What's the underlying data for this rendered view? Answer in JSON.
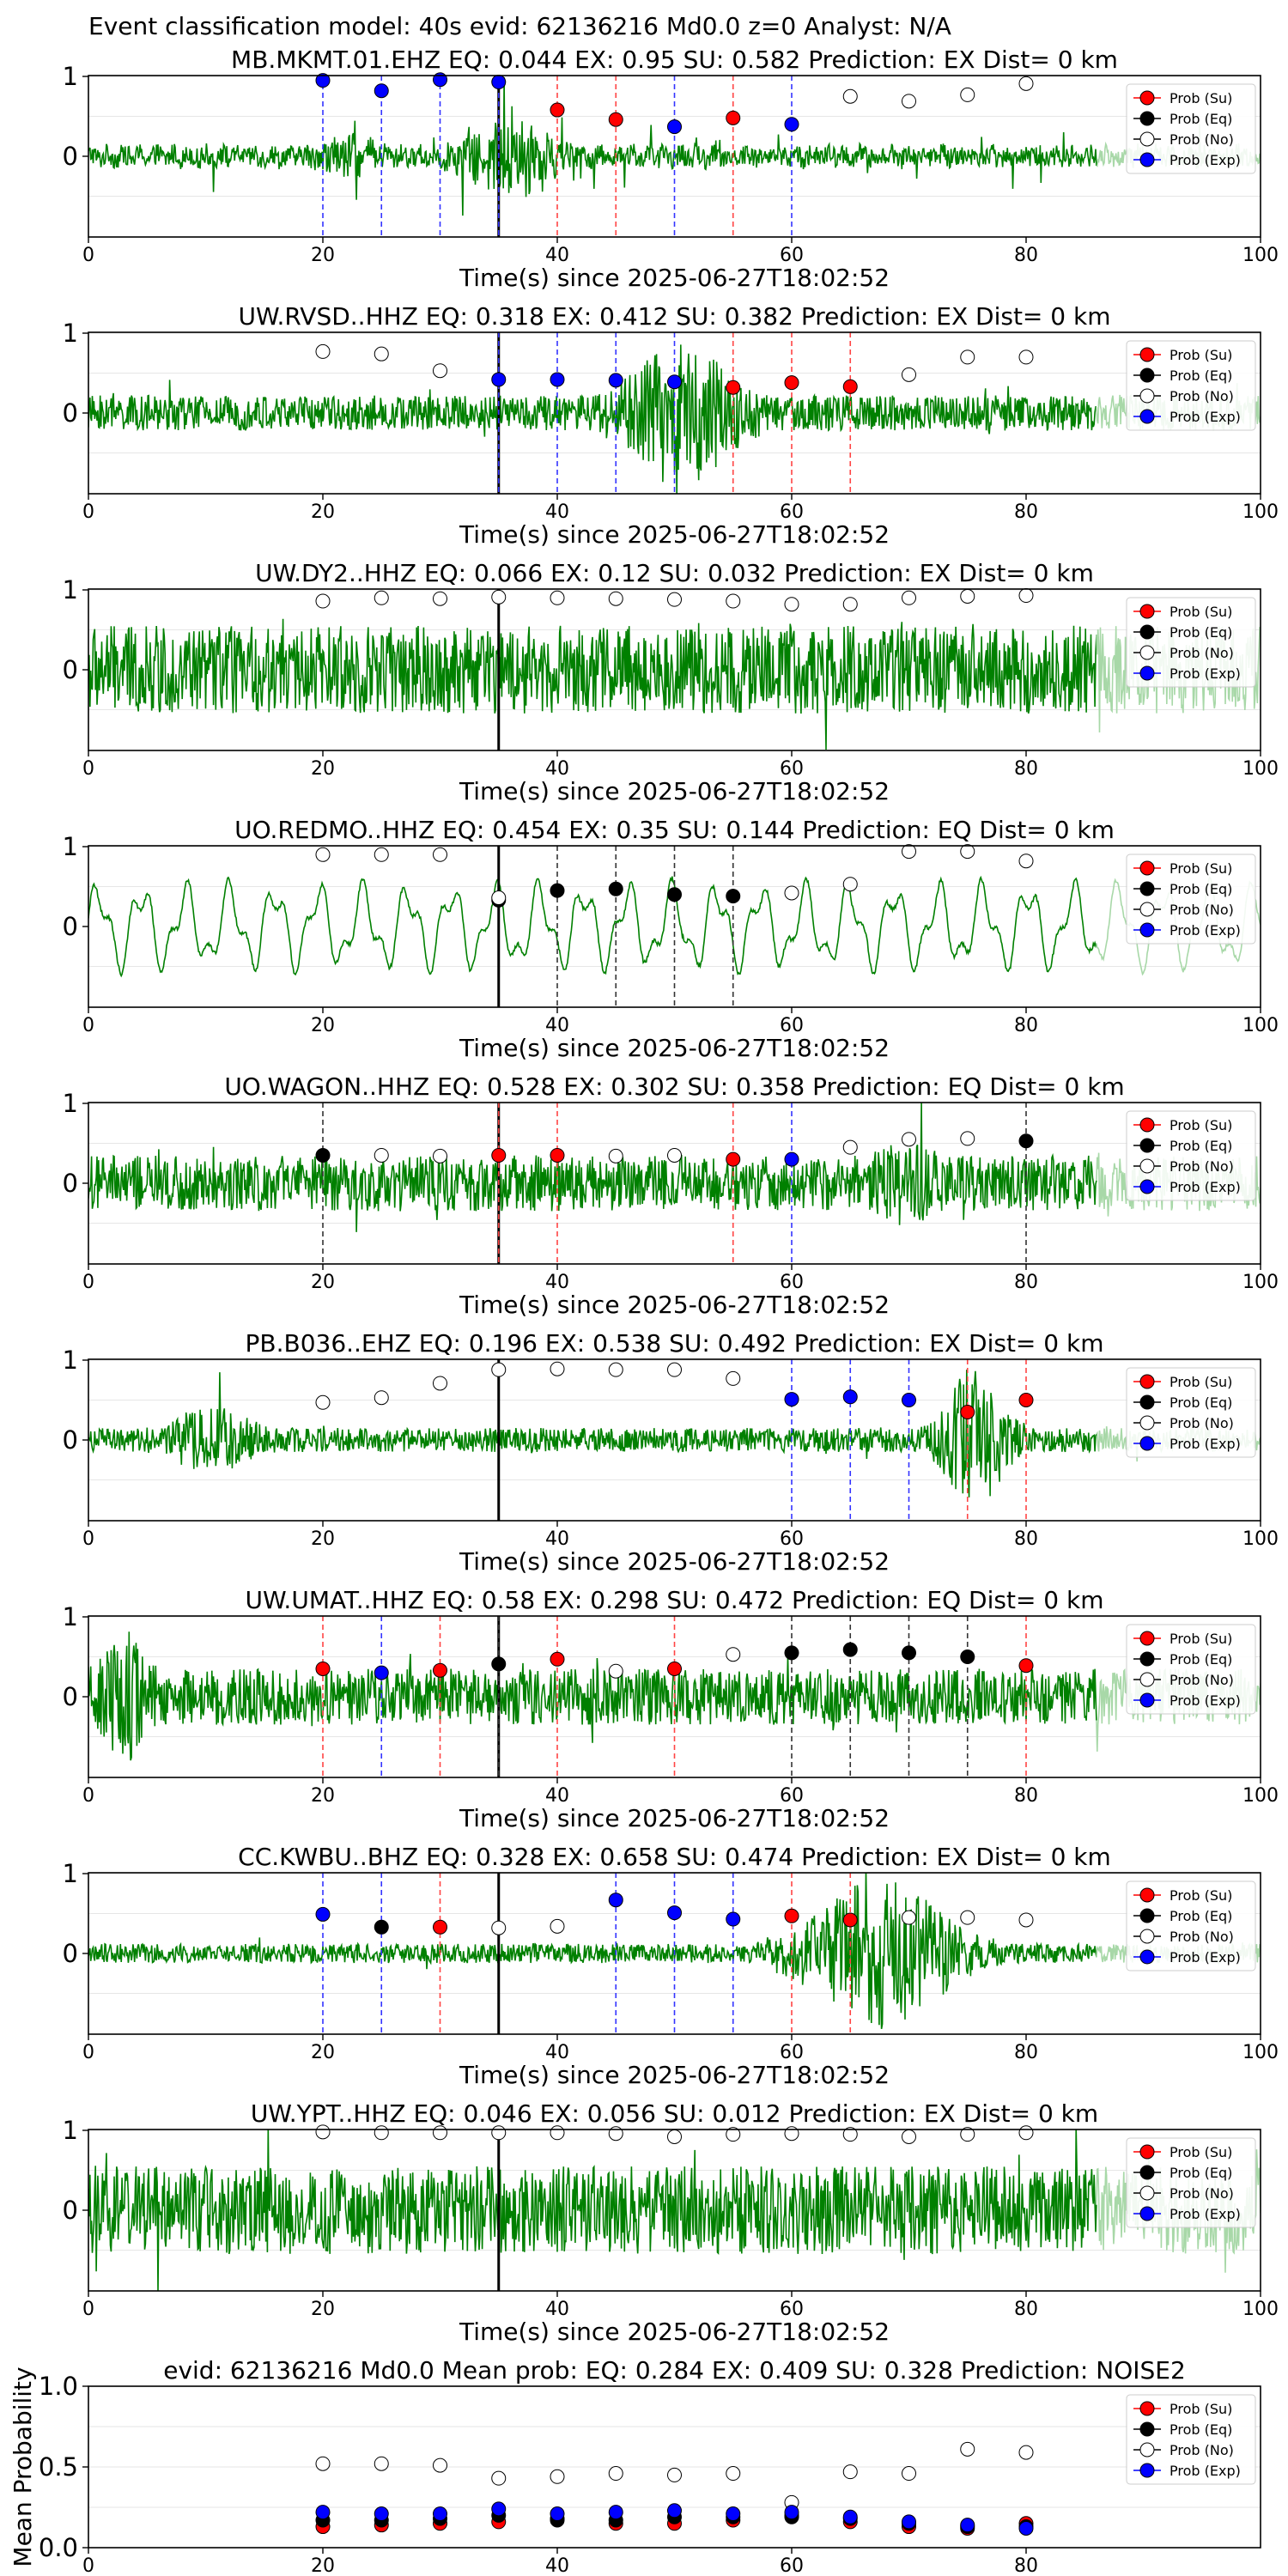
{
  "figure": {
    "suptitle": "Event classification model: 40s evid: 62136216 Md0.0 z=0 Analyst: N/A"
  },
  "legend": {
    "entries": [
      {
        "label": "Prob (Su)",
        "color": "#ff0000"
      },
      {
        "label": "Prob (Eq)",
        "color": "#000000"
      },
      {
        "label": "Prob (No)",
        "color": "#ffffff"
      },
      {
        "label": "Prob (Exp)",
        "color": "#0000ff"
      }
    ],
    "placement": "top-right"
  },
  "colors": {
    "waveform": "#008000",
    "waveform_tail": "#a8d8a8",
    "su": "#ff0000",
    "eq": "#000000",
    "no": "#ffffff",
    "exp": "#0000ff",
    "vline_su": "#ff4444",
    "vline_eq": "#333333",
    "vline_exp": "#3333ff"
  },
  "chart_data": [
    {
      "type": "line",
      "title": "MB.MKMT.01.EHZ   EQ: 0.044  EX: 0.95  SU: 0.582   Prediction: EX    Dist= 0 km",
      "xlabel": "Time(s) since 2025-06-27T18:02:52",
      "ylabel": "",
      "xlim": [
        0,
        100
      ],
      "ylim": [
        -1,
        1
      ],
      "xticks": [
        "0",
        "20",
        "40",
        "60",
        "80",
        "100"
      ],
      "yticks": [
        "1",
        "0"
      ],
      "grid": true,
      "arrival_line_x": 35,
      "waveform": {
        "style": "spiky",
        "amp": 0.22,
        "events": [
          [
            30,
            42,
            0.95
          ],
          [
            18,
            26,
            0.45
          ]
        ]
      },
      "x": [
        20,
        25,
        30,
        35,
        40,
        45,
        50,
        55,
        60,
        65,
        70,
        75,
        80
      ],
      "su": [
        0.02,
        0.02,
        0.02,
        0.02,
        0.58,
        0.46,
        0.02,
        0.48,
        0.02,
        0.02,
        0.01,
        0.01,
        0.01
      ],
      "eq": [
        0.01,
        0.01,
        0.01,
        0.01,
        0.02,
        0.02,
        0.01,
        0.02,
        0.01,
        0.01,
        0.01,
        0.01,
        0.01
      ],
      "no": [
        0.01,
        0.01,
        0.01,
        0.01,
        0.03,
        0.03,
        0.02,
        0.03,
        0.02,
        0.75,
        0.69,
        0.77,
        0.91
      ],
      "exp": [
        0.95,
        0.82,
        0.96,
        0.93,
        0.03,
        0.02,
        0.37,
        0.02,
        0.4,
        0.02,
        0.01,
        0.01,
        0.01
      ],
      "vlines": [
        [
          20,
          "exp"
        ],
        [
          25,
          "exp"
        ],
        [
          30,
          "exp"
        ],
        [
          35,
          "exp"
        ],
        [
          40,
          "su"
        ],
        [
          45,
          "su"
        ],
        [
          50,
          "exp"
        ],
        [
          55,
          "su"
        ],
        [
          60,
          "exp"
        ]
      ]
    },
    {
      "type": "line",
      "title": "UW.RVSD..HHZ   EQ: 0.318  EX: 0.412  SU: 0.382   Prediction: EX    Dist= 0 km",
      "xlabel": "Time(s) since 2025-06-27T18:02:52",
      "ylabel": "",
      "xlim": [
        0,
        100
      ],
      "ylim": [
        -1,
        1
      ],
      "xticks": [
        "0",
        "20",
        "40",
        "60",
        "80",
        "100"
      ],
      "yticks": [
        "1",
        "0"
      ],
      "grid": true,
      "arrival_line_x": 35,
      "waveform": {
        "style": "noise",
        "amp": 0.22,
        "events": [
          [
            43,
            58,
            0.95
          ]
        ]
      },
      "x": [
        20,
        25,
        30,
        35,
        40,
        45,
        50,
        55,
        60,
        65,
        70,
        75,
        80
      ],
      "su": [
        0.02,
        0.02,
        0.02,
        0.02,
        0.03,
        0.03,
        0.05,
        0.32,
        0.38,
        0.33,
        0.02,
        0.02,
        0.02
      ],
      "eq": [
        0.01,
        0.01,
        0.01,
        0.02,
        0.02,
        0.02,
        0.03,
        0.05,
        0.05,
        0.04,
        0.01,
        0.01,
        0.01
      ],
      "no": [
        0.77,
        0.74,
        0.53,
        0.03,
        0.03,
        0.03,
        0.03,
        0.03,
        0.03,
        0.03,
        0.48,
        0.7,
        0.7
      ],
      "exp": [
        0.02,
        0.02,
        0.02,
        0.42,
        0.42,
        0.41,
        0.39,
        0.04,
        0.04,
        0.04,
        0.02,
        0.02,
        0.02
      ],
      "vlines": [
        [
          35,
          "exp"
        ],
        [
          40,
          "exp"
        ],
        [
          45,
          "exp"
        ],
        [
          50,
          "exp"
        ],
        [
          55,
          "su"
        ],
        [
          60,
          "su"
        ],
        [
          65,
          "su"
        ]
      ]
    },
    {
      "type": "line",
      "title": "UW.DY2..HHZ   EQ: 0.066  EX: 0.12  SU: 0.032   Prediction: EX    Dist= 0 km",
      "xlabel": "Time(s) since 2025-06-27T18:02:52",
      "ylabel": "",
      "xlim": [
        0,
        100
      ],
      "ylim": [
        -1,
        1
      ],
      "xticks": [
        "0",
        "20",
        "40",
        "60",
        "80",
        "100"
      ],
      "yticks": [
        "1",
        "0"
      ],
      "grid": true,
      "arrival_line_x": 35,
      "waveform": {
        "style": "noise",
        "amp": 0.55,
        "events": []
      },
      "x": [
        20,
        25,
        30,
        35,
        40,
        45,
        50,
        55,
        60,
        65,
        70,
        75,
        80
      ],
      "su": [
        0.01,
        0.01,
        0.01,
        0.01,
        0.01,
        0.01,
        0.01,
        0.01,
        0.01,
        0.01,
        0.01,
        0.01,
        0.01
      ],
      "eq": [
        0.01,
        0.01,
        0.01,
        0.01,
        0.01,
        0.01,
        0.01,
        0.01,
        0.01,
        0.01,
        0.01,
        0.01,
        0.01
      ],
      "no": [
        0.86,
        0.9,
        0.89,
        0.91,
        0.9,
        0.89,
        0.88,
        0.86,
        0.82,
        0.82,
        0.9,
        0.92,
        0.93
      ],
      "exp": [
        0.01,
        0.01,
        0.01,
        0.01,
        0.01,
        0.01,
        0.01,
        0.01,
        0.01,
        0.01,
        0.01,
        0.01,
        0.01
      ],
      "vlines": []
    },
    {
      "type": "line",
      "title": "UO.REDMO..HHZ   EQ: 0.454  EX: 0.35  SU: 0.144   Prediction: EQ    Dist= 0 km",
      "xlabel": "Time(s) since 2025-06-27T18:02:52",
      "ylabel": "",
      "xlim": [
        0,
        100
      ],
      "ylim": [
        -1,
        1
      ],
      "xticks": [
        "0",
        "20",
        "40",
        "60",
        "80",
        "100"
      ],
      "yticks": [
        "1",
        "0"
      ],
      "grid": true,
      "arrival_line_x": 35,
      "waveform": {
        "style": "smooth",
        "amp": 0.55,
        "events": []
      },
      "x": [
        20,
        25,
        30,
        35,
        40,
        45,
        50,
        55,
        60,
        65,
        70,
        75,
        80
      ],
      "su": [
        0.01,
        0.01,
        0.01,
        0.02,
        0.02,
        0.02,
        0.02,
        0.02,
        0.02,
        0.02,
        0.01,
        0.01,
        0.01
      ],
      "eq": [
        0.02,
        0.02,
        0.02,
        0.33,
        0.45,
        0.47,
        0.4,
        0.38,
        0.03,
        0.03,
        0.02,
        0.02,
        0.02
      ],
      "no": [
        0.9,
        0.9,
        0.9,
        0.36,
        0.03,
        0.03,
        0.03,
        0.03,
        0.42,
        0.53,
        0.94,
        0.94,
        0.82
      ],
      "exp": [
        0.01,
        0.01,
        0.01,
        0.02,
        0.02,
        0.02,
        0.02,
        0.02,
        0.02,
        0.02,
        0.01,
        0.01,
        0.01
      ],
      "vlines": [
        [
          40,
          "eq"
        ],
        [
          45,
          "eq"
        ],
        [
          50,
          "eq"
        ],
        [
          55,
          "eq"
        ]
      ]
    },
    {
      "type": "line",
      "title": "UO.WAGON..HHZ   EQ: 0.528  EX: 0.302  SU: 0.358   Prediction: EQ    Dist= 0 km",
      "xlabel": "Time(s) since 2025-06-27T18:02:52",
      "ylabel": "",
      "xlim": [
        0,
        100
      ],
      "ylim": [
        -1,
        1
      ],
      "xticks": [
        "0",
        "20",
        "40",
        "60",
        "80",
        "100"
      ],
      "yticks": [
        "1",
        "0"
      ],
      "grid": true,
      "arrival_line_x": 35,
      "waveform": {
        "style": "noise",
        "amp": 0.35,
        "events": [
          [
            66,
            74,
            0.55
          ]
        ]
      },
      "x": [
        20,
        25,
        30,
        35,
        40,
        45,
        50,
        55,
        60,
        65,
        70,
        75,
        80
      ],
      "su": [
        0.03,
        0.03,
        0.03,
        0.35,
        0.35,
        0.03,
        0.03,
        0.3,
        0.03,
        0.03,
        0.03,
        0.03,
        0.03
      ],
      "eq": [
        0.35,
        0.04,
        0.04,
        0.04,
        0.04,
        0.04,
        0.04,
        0.04,
        0.04,
        0.04,
        0.04,
        0.04,
        0.53
      ],
      "no": [
        0.04,
        0.35,
        0.34,
        0.04,
        0.04,
        0.34,
        0.35,
        0.04,
        0.04,
        0.45,
        0.55,
        0.56,
        0.04
      ],
      "exp": [
        0.03,
        0.03,
        0.03,
        0.03,
        0.03,
        0.03,
        0.03,
        0.03,
        0.3,
        0.03,
        0.03,
        0.03,
        0.03
      ],
      "vlines": [
        [
          20,
          "eq"
        ],
        [
          35,
          "su"
        ],
        [
          40,
          "su"
        ],
        [
          55,
          "su"
        ],
        [
          60,
          "exp"
        ],
        [
          80,
          "eq"
        ]
      ]
    },
    {
      "type": "line",
      "title": "PB.B036..EHZ   EQ: 0.196  EX: 0.538  SU: 0.492   Prediction: EX    Dist= 0 km",
      "xlabel": "Time(s) since 2025-06-27T18:02:52",
      "ylabel": "",
      "xlim": [
        0,
        100
      ],
      "ylim": [
        -1,
        1
      ],
      "xticks": [
        "0",
        "20",
        "40",
        "60",
        "80",
        "100"
      ],
      "yticks": [
        "1",
        "0"
      ],
      "grid": true,
      "arrival_line_x": 35,
      "waveform": {
        "style": "noise",
        "amp": 0.15,
        "events": [
          [
            5,
            16,
            0.45
          ],
          [
            71,
            80,
            0.95
          ]
        ]
      },
      "x": [
        20,
        25,
        30,
        35,
        40,
        45,
        50,
        55,
        60,
        65,
        70,
        75,
        80
      ],
      "su": [
        0.02,
        0.02,
        0.02,
        0.02,
        0.02,
        0.02,
        0.02,
        0.02,
        0.04,
        0.04,
        0.04,
        0.35,
        0.5
      ],
      "eq": [
        0.02,
        0.02,
        0.02,
        0.02,
        0.02,
        0.02,
        0.02,
        0.02,
        0.03,
        0.03,
        0.03,
        0.03,
        0.03
      ],
      "no": [
        0.47,
        0.53,
        0.71,
        0.88,
        0.89,
        0.88,
        0.88,
        0.77,
        0.04,
        0.04,
        0.04,
        0.04,
        0.04
      ],
      "exp": [
        0.02,
        0.02,
        0.02,
        0.02,
        0.02,
        0.02,
        0.02,
        0.02,
        0.51,
        0.54,
        0.5,
        0.04,
        0.04
      ],
      "vlines": [
        [
          60,
          "exp"
        ],
        [
          65,
          "exp"
        ],
        [
          70,
          "exp"
        ],
        [
          75,
          "su"
        ],
        [
          80,
          "su"
        ]
      ]
    },
    {
      "type": "line",
      "title": "UW.UMAT..HHZ   EQ: 0.58  EX: 0.298  SU: 0.472   Prediction: EQ    Dist= 0 km",
      "xlabel": "Time(s) since 2025-06-27T18:02:52",
      "ylabel": "",
      "xlim": [
        0,
        100
      ],
      "ylim": [
        -1,
        1
      ],
      "xticks": [
        "0",
        "20",
        "40",
        "60",
        "80",
        "100"
      ],
      "yticks": [
        "1",
        "0"
      ],
      "grid": true,
      "arrival_line_x": 35,
      "waveform": {
        "style": "noise",
        "amp": 0.35,
        "events": [
          [
            0,
            6,
            0.85
          ]
        ]
      },
      "x": [
        20,
        25,
        30,
        35,
        40,
        45,
        50,
        55,
        60,
        65,
        70,
        75,
        80
      ],
      "su": [
        0.35,
        0.04,
        0.33,
        0.04,
        0.47,
        0.04,
        0.35,
        0.04,
        0.04,
        0.04,
        0.04,
        0.04,
        0.39
      ],
      "eq": [
        0.04,
        0.04,
        0.04,
        0.41,
        0.04,
        0.04,
        0.04,
        0.04,
        0.55,
        0.59,
        0.55,
        0.5,
        0.04
      ],
      "no": [
        0.04,
        0.04,
        0.04,
        0.04,
        0.04,
        0.32,
        0.04,
        0.53,
        0.04,
        0.04,
        0.04,
        0.04,
        0.04
      ],
      "exp": [
        0.04,
        0.3,
        0.04,
        0.04,
        0.04,
        0.04,
        0.04,
        0.04,
        0.04,
        0.04,
        0.04,
        0.04,
        0.04
      ],
      "vlines": [
        [
          20,
          "su"
        ],
        [
          25,
          "exp"
        ],
        [
          30,
          "su"
        ],
        [
          35,
          "eq"
        ],
        [
          40,
          "su"
        ],
        [
          50,
          "su"
        ],
        [
          60,
          "eq"
        ],
        [
          65,
          "eq"
        ],
        [
          70,
          "eq"
        ],
        [
          75,
          "eq"
        ],
        [
          80,
          "su"
        ]
      ]
    },
    {
      "type": "line",
      "title": "CC.KWBU..BHZ   EQ: 0.328  EX: 0.658  SU: 0.474   Prediction: EX    Dist= 0 km",
      "xlabel": "Time(s) since 2025-06-27T18:02:52",
      "ylabel": "",
      "xlim": [
        0,
        100
      ],
      "ylim": [
        -1,
        1
      ],
      "xticks": [
        "0",
        "20",
        "40",
        "60",
        "80",
        "100"
      ],
      "yticks": [
        "1",
        "0"
      ],
      "grid": true,
      "arrival_line_x": 35,
      "waveform": {
        "style": "noise",
        "amp": 0.12,
        "events": [
          [
            57,
            78,
            0.95
          ]
        ]
      },
      "x": [
        20,
        25,
        30,
        35,
        40,
        45,
        50,
        55,
        60,
        65,
        70,
        75,
        80
      ],
      "su": [
        0.04,
        0.04,
        0.33,
        0.04,
        0.04,
        0.04,
        0.04,
        0.04,
        0.47,
        0.42,
        0.04,
        0.04,
        0.04
      ],
      "eq": [
        0.04,
        0.33,
        0.04,
        0.04,
        0.04,
        0.04,
        0.04,
        0.04,
        0.04,
        0.04,
        0.04,
        0.04,
        0.04
      ],
      "no": [
        0.04,
        0.04,
        0.04,
        0.32,
        0.34,
        0.04,
        0.04,
        0.04,
        0.04,
        0.04,
        0.45,
        0.45,
        0.42
      ],
      "exp": [
        0.49,
        0.04,
        0.04,
        0.04,
        0.04,
        0.67,
        0.51,
        0.43,
        0.04,
        0.04,
        0.04,
        0.04,
        0.04
      ],
      "vlines": [
        [
          20,
          "exp"
        ],
        [
          25,
          "exp"
        ],
        [
          30,
          "su"
        ],
        [
          45,
          "exp"
        ],
        [
          50,
          "exp"
        ],
        [
          55,
          "exp"
        ],
        [
          60,
          "su"
        ],
        [
          65,
          "su"
        ]
      ]
    },
    {
      "type": "line",
      "title": "UW.YPT..HHZ   EQ: 0.046  EX: 0.056  SU: 0.012   Prediction: EX    Dist= 0 km",
      "xlabel": "Time(s) since 2025-06-27T18:02:52",
      "ylabel": "",
      "xlim": [
        0,
        100
      ],
      "ylim": [
        -1,
        1
      ],
      "xticks": [
        "0",
        "20",
        "40",
        "60",
        "80",
        "100"
      ],
      "yticks": [
        "1",
        "0"
      ],
      "grid": true,
      "arrival_line_x": 35,
      "waveform": {
        "style": "noise",
        "amp": 0.55,
        "events": []
      },
      "x": [
        20,
        25,
        30,
        35,
        40,
        45,
        50,
        55,
        60,
        65,
        70,
        75,
        80
      ],
      "su": [
        0.01,
        0.01,
        0.01,
        0.01,
        0.01,
        0.01,
        0.01,
        0.01,
        0.01,
        0.01,
        0.01,
        0.01,
        0.01
      ],
      "eq": [
        0.01,
        0.01,
        0.01,
        0.01,
        0.01,
        0.01,
        0.01,
        0.01,
        0.01,
        0.01,
        0.01,
        0.01,
        0.01
      ],
      "no": [
        0.98,
        0.97,
        0.97,
        0.97,
        0.97,
        0.96,
        0.92,
        0.95,
        0.96,
        0.95,
        0.92,
        0.95,
        0.97
      ],
      "exp": [
        0.01,
        0.01,
        0.01,
        0.01,
        0.01,
        0.01,
        0.01,
        0.01,
        0.01,
        0.01,
        0.01,
        0.01,
        0.01
      ],
      "vlines": []
    },
    {
      "type": "scatter",
      "title": "evid: 62136216  Md0.0   Mean prob:    EQ: 0.284  EX: 0.409  SU: 0.328   Prediction: NOISE2",
      "xlabel": "",
      "ylabel": "Mean Probability",
      "xlim": [
        0,
        100
      ],
      "ylim": [
        0,
        1
      ],
      "xticks": [
        "0",
        "20",
        "40",
        "60",
        "80"
      ],
      "yticks": [
        "1.0",
        "0.5",
        "0.0"
      ],
      "grid": true,
      "x": [
        20,
        25,
        30,
        35,
        40,
        45,
        50,
        55,
        60,
        65,
        70,
        75,
        80
      ],
      "su": [
        0.13,
        0.14,
        0.15,
        0.16,
        0.18,
        0.15,
        0.15,
        0.17,
        0.2,
        0.16,
        0.13,
        0.12,
        0.15
      ],
      "eq": [
        0.17,
        0.17,
        0.18,
        0.2,
        0.17,
        0.17,
        0.19,
        0.19,
        0.19,
        0.18,
        0.15,
        0.13,
        0.13
      ],
      "no": [
        0.52,
        0.52,
        0.51,
        0.43,
        0.44,
        0.46,
        0.45,
        0.46,
        0.28,
        0.47,
        0.46,
        0.61,
        0.59
      ],
      "exp": [
        0.22,
        0.21,
        0.21,
        0.24,
        0.21,
        0.22,
        0.23,
        0.21,
        0.22,
        0.19,
        0.16,
        0.14,
        0.12
      ]
    }
  ]
}
